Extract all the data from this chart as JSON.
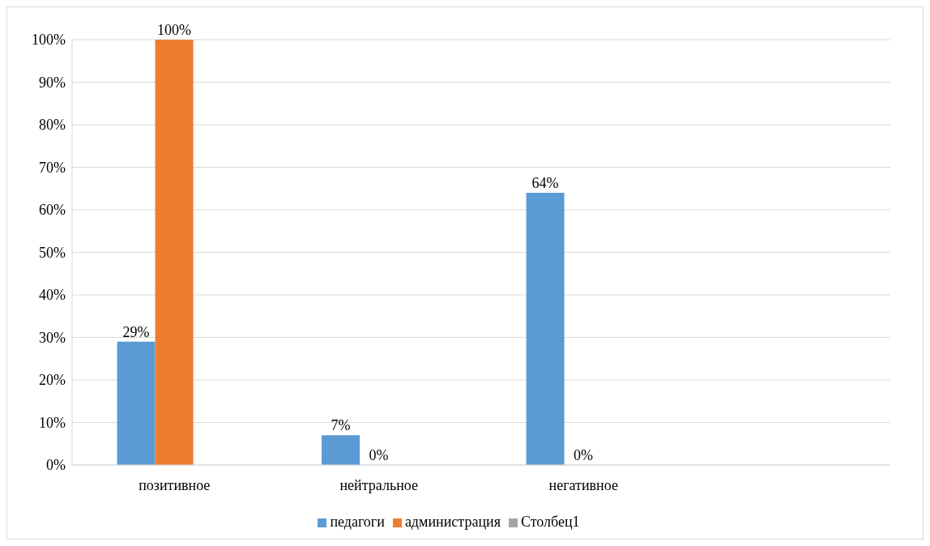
{
  "chart_data": {
    "type": "bar",
    "categories": [
      "позитивное",
      "нейтральное",
      "негативное",
      null
    ],
    "series": [
      {
        "name": "педагоги",
        "color": "#5b9bd5",
        "values": [
          29,
          7,
          64,
          null
        ],
        "value_labels": [
          "29%",
          "7%",
          "64%",
          null
        ]
      },
      {
        "name": "администрация",
        "color": "#ed7d31",
        "values": [
          100,
          0,
          0,
          null
        ],
        "value_labels": [
          "100%",
          "0%",
          "0%",
          null
        ]
      },
      {
        "name": "Столбец1",
        "color": "#a5a5a5",
        "values": [
          null,
          null,
          null,
          null
        ]
      }
    ],
    "ylim": [
      0,
      100
    ],
    "yticks": [
      {
        "value": 0,
        "label": "0%"
      },
      {
        "value": 10,
        "label": "10%"
      },
      {
        "value": 20,
        "label": "20%"
      },
      {
        "value": 30,
        "label": "30%"
      },
      {
        "value": 40,
        "label": "40%"
      },
      {
        "value": 50,
        "label": "50%"
      },
      {
        "value": 60,
        "label": "60%"
      },
      {
        "value": 70,
        "label": "70%"
      },
      {
        "value": 80,
        "label": "80%"
      },
      {
        "value": 90,
        "label": "90%"
      },
      {
        "value": 100,
        "label": "100%"
      }
    ],
    "grid": "y",
    "legend": "bottom"
  }
}
